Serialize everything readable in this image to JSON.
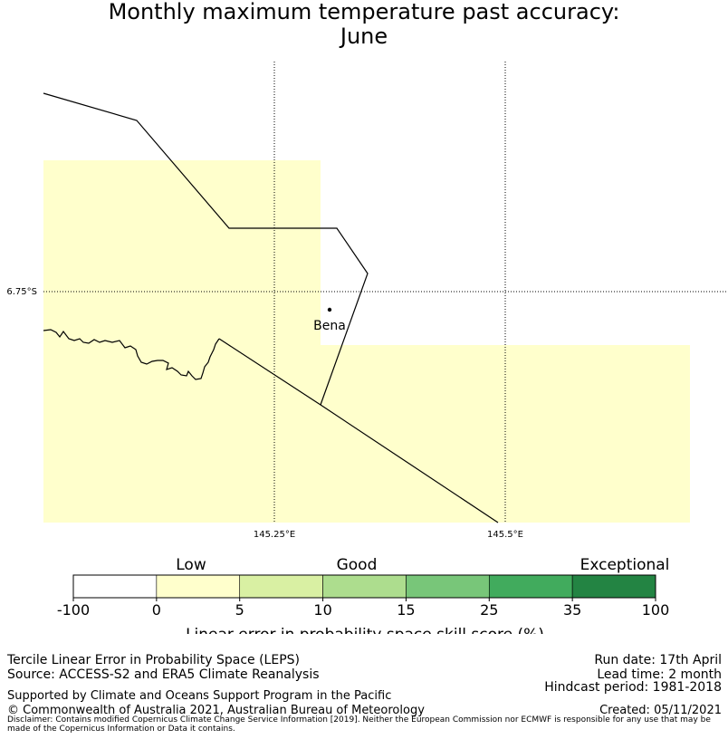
{
  "title": {
    "line1": "Monthly maximum temperature past accuracy:",
    "line2": "June"
  },
  "map": {
    "place": "Bena",
    "lat_label": "6.75°S",
    "lon_labels": [
      "145.25°E",
      "145.5°E"
    ],
    "fill_color": "#ffffcc",
    "grid_style": "dotted",
    "skill_category": "Low"
  },
  "colorbar": {
    "categories": [
      "Low",
      "Good",
      "Exceptional"
    ],
    "ticks": [
      "-100",
      "0",
      "5",
      "10",
      "15",
      "25",
      "35",
      "100"
    ],
    "colors": [
      "#ffffff",
      "#ffffcc",
      "#d9f0a3",
      "#addd8e",
      "#78c679",
      "#41ab5d",
      "#238443"
    ],
    "label": "Linear error in probability space skill score (%)"
  },
  "footer": {
    "left": [
      "Tercile Linear Error in Probability Space (LEPS)",
      "Source: ACCESS-S2 and ERA5 Climate Reanalysis"
    ],
    "right": [
      "Run date: 17th April",
      "Lead time: 2 month",
      "Hindcast period: 1981-2018"
    ],
    "support": "Supported by Climate and Oceans Support Program in the Pacific",
    "copyright": "© Commonwealth of Australia 2021, Australian Bureau of Meteorology",
    "created": "Created: 05/11/2021",
    "disclaimer": "Disclaimer: Contains modified Copernicus Climate Change Service Information [2019]. Neither the European Commission nor ECMWF is responsible for any use that may be made of the Copernicus Information or Data it contains."
  }
}
